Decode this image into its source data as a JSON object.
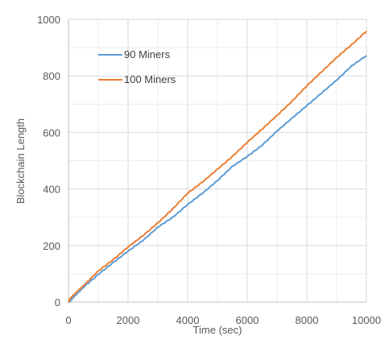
{
  "chart_data": {
    "type": "line",
    "title": "",
    "xlabel": "Time (sec)",
    "ylabel": "Blockchain Length",
    "xlim": [
      0,
      10000
    ],
    "ylim": [
      0,
      1000
    ],
    "xticks": [
      0,
      2000,
      4000,
      6000,
      8000,
      10000
    ],
    "yticks": [
      0,
      200,
      400,
      600,
      800,
      1000
    ],
    "x_tick_labels": [
      "0",
      "2000",
      "4000",
      "6000",
      "8000",
      "10000"
    ],
    "y_tick_labels": [
      "0",
      "200",
      "400",
      "600",
      "800",
      "1000"
    ],
    "grid": true,
    "legend_position": "top-left",
    "series": [
      {
        "name": "90 Miners",
        "color": "#5B9BD5",
        "x": [
          0,
          50,
          200,
          500,
          1000,
          1500,
          2000,
          2500,
          3000,
          3500,
          4000,
          4500,
          5000,
          5500,
          6000,
          6500,
          7000,
          7500,
          8000,
          8500,
          9000,
          9500,
          10000
        ],
        "y": [
          0,
          3,
          20,
          52,
          98,
          140,
          180,
          218,
          265,
          300,
          345,
          385,
          430,
          480,
          515,
          555,
          605,
          650,
          695,
          740,
          785,
          835,
          872
        ]
      },
      {
        "name": "100 Miners",
        "color": "#ED7D31",
        "x": [
          0,
          50,
          200,
          500,
          1000,
          1500,
          2000,
          2500,
          3000,
          3500,
          4000,
          4500,
          5000,
          5500,
          6000,
          6500,
          7000,
          7500,
          8000,
          8500,
          9000,
          9500,
          10000
        ],
        "y": [
          0,
          12,
          28,
          58,
          110,
          150,
          195,
          235,
          280,
          330,
          385,
          425,
          470,
          515,
          565,
          612,
          660,
          710,
          765,
          815,
          865,
          910,
          958
        ]
      }
    ]
  }
}
